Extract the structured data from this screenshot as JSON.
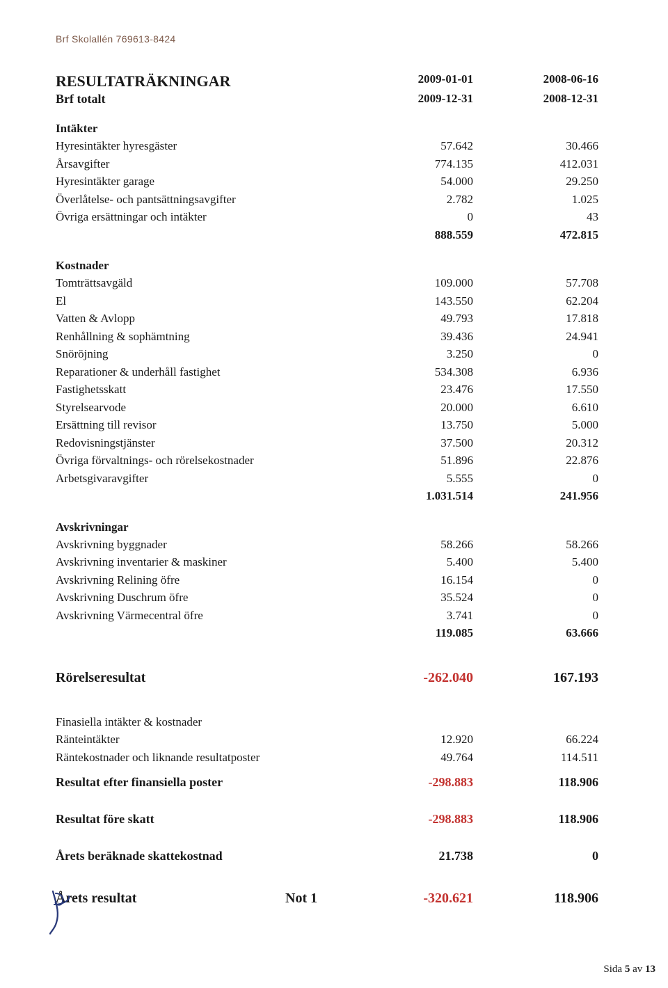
{
  "header_org": "Brf Skolallén 769613-8424",
  "title": "RESULTATRÄKNINGAR",
  "subtitle": "Brf totalt",
  "periods": {
    "col1_start": "2009-01-01",
    "col1_end": "2009-12-31",
    "col2_start": "2008-06-16",
    "col2_end": "2008-12-31"
  },
  "sections": {
    "intakter": {
      "heading": "Intäkter",
      "rows": [
        {
          "label": "Hyresintäkter hyresgäster",
          "c1": "57.642",
          "c2": "30.466"
        },
        {
          "label": "Årsavgifter",
          "c1": "774.135",
          "c2": "412.031"
        },
        {
          "label": "Hyresintäkter garage",
          "c1": "54.000",
          "c2": "29.250"
        },
        {
          "label": "Överlåtelse- och pantsättningsavgifter",
          "c1": "2.782",
          "c2": "1.025"
        },
        {
          "label": "Övriga ersättningar och intäkter",
          "c1": "0",
          "c2": "43"
        }
      ],
      "total": {
        "c1": "888.559",
        "c2": "472.815"
      }
    },
    "kostnader": {
      "heading": "Kostnader",
      "rows": [
        {
          "label": "Tomträttsavgäld",
          "c1": "109.000",
          "c2": "57.708"
        },
        {
          "label": "El",
          "c1": "143.550",
          "c2": "62.204"
        },
        {
          "label": "Vatten & Avlopp",
          "c1": "49.793",
          "c2": "17.818"
        },
        {
          "label": "Renhållning & sophämtning",
          "c1": "39.436",
          "c2": "24.941"
        },
        {
          "label": "Snöröjning",
          "c1": "3.250",
          "c2": "0"
        },
        {
          "label": "Reparationer & underhåll fastighet",
          "c1": "534.308",
          "c2": "6.936"
        },
        {
          "label": "Fastighetsskatt",
          "c1": "23.476",
          "c2": "17.550"
        },
        {
          "label": "Styrelsearvode",
          "c1": "20.000",
          "c2": "6.610"
        },
        {
          "label": "Ersättning till revisor",
          "c1": "13.750",
          "c2": "5.000"
        },
        {
          "label": "Redovisningstjänster",
          "c1": "37.500",
          "c2": "20.312"
        },
        {
          "label": "Övriga förvaltnings- och rörelsekostnader",
          "c1": "51.896",
          "c2": "22.876"
        },
        {
          "label": "Arbetsgivaravgifter",
          "c1": "5.555",
          "c2": "0"
        }
      ],
      "total": {
        "c1": "1.031.514",
        "c2": "241.956"
      }
    },
    "avskrivningar": {
      "heading": "Avskrivningar",
      "rows": [
        {
          "label": "Avskrivning byggnader",
          "c1": "58.266",
          "c2": "58.266"
        },
        {
          "label": "Avskrivning inventarier & maskiner",
          "c1": "5.400",
          "c2": "5.400"
        },
        {
          "label": "Avskrivning Relining öfre",
          "c1": "16.154",
          "c2": "0"
        },
        {
          "label": "Avskrivning Duschrum öfre",
          "c1": "35.524",
          "c2": "0"
        },
        {
          "label": "Avskrivning Värmecentral öfre",
          "c1": "3.741",
          "c2": "0"
        }
      ],
      "total": {
        "c1": "119.085",
        "c2": "63.666"
      }
    }
  },
  "rorelseresultat": {
    "label": "Rörelseresultat",
    "c1": "-262.040",
    "c2": "167.193"
  },
  "finans": {
    "heading": "Finasiella intäkter & kostnader",
    "rows": [
      {
        "label": "Ränteintäkter",
        "c1": "12.920",
        "c2": "66.224"
      },
      {
        "label": "Räntekostnader och liknande resultatposter",
        "c1": "49.764",
        "c2": "114.511"
      }
    ]
  },
  "resultat_efter_finans": {
    "label": "Resultat efter finansiella poster",
    "c1": "-298.883",
    "c2": "118.906"
  },
  "resultat_fore_skatt": {
    "label": "Resultat före skatt",
    "c1": "-298.883",
    "c2": "118.906"
  },
  "skatt": {
    "label": "Årets beräknade skattekostnad",
    "c1": "21.738",
    "c2": "0"
  },
  "arets_resultat": {
    "label": "Årets resultat",
    "note": "Not 1",
    "c1": "-320.621",
    "c2": "118.906"
  },
  "footer": {
    "prefix": "Sida ",
    "page": "5",
    "middle": " av ",
    "total": "13"
  },
  "colors": {
    "text": "#1a1a1a",
    "header": "#7d5a4a",
    "negative": "#c3322f",
    "signature": "#2a3a7a",
    "background": "#ffffff"
  }
}
